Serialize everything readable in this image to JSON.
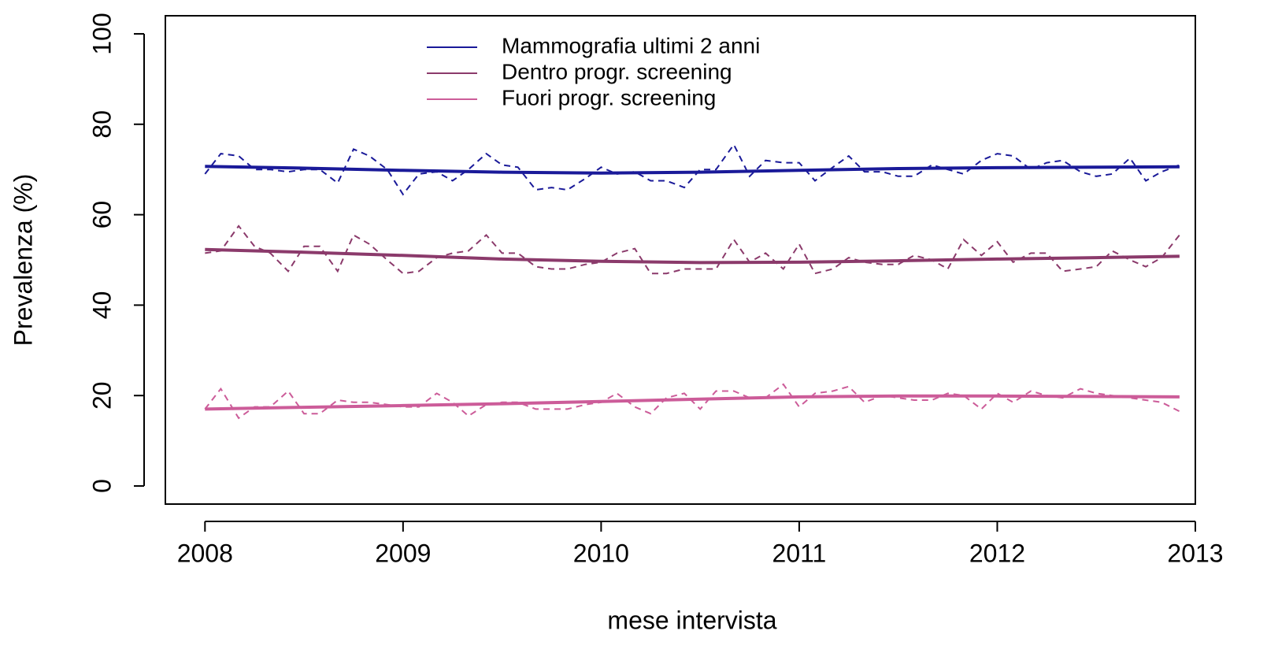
{
  "chart_data": {
    "type": "line",
    "xlabel": "mese intervista",
    "ylabel": "Prevalenza (%)",
    "xlim": [
      2007.8,
      2013
    ],
    "ylim": [
      -4,
      104
    ],
    "xticks": [
      2008,
      2009,
      2010,
      2011,
      2012,
      2013
    ],
    "yticks": [
      0,
      20,
      40,
      60,
      80,
      100
    ],
    "legend": "top",
    "x": [
      2008,
      2008.08,
      2008.17,
      2008.25,
      2008.33,
      2008.42,
      2008.5,
      2008.58,
      2008.67,
      2008.75,
      2008.83,
      2008.92,
      2009,
      2009.08,
      2009.17,
      2009.25,
      2009.33,
      2009.42,
      2009.5,
      2009.58,
      2009.67,
      2009.75,
      2009.83,
      2009.92,
      2010,
      2010.08,
      2010.17,
      2010.25,
      2010.33,
      2010.42,
      2010.5,
      2010.58,
      2010.67,
      2010.75,
      2010.83,
      2010.92,
      2011,
      2011.08,
      2011.17,
      2011.25,
      2011.33,
      2011.42,
      2011.5,
      2011.58,
      2011.67,
      2011.75,
      2011.83,
      2011.92,
      2012,
      2012.08,
      2012.17,
      2012.25,
      2012.33,
      2012.42,
      2012.5,
      2012.58,
      2012.67,
      2012.75,
      2012.83,
      2012.92
    ],
    "series": [
      {
        "name": "Mammografia ultimi 2 anni",
        "color": "#1a1a99",
        "values": [
          69,
          73.5,
          73,
          70,
          70,
          69.5,
          70,
          70,
          67,
          74.5,
          73,
          70,
          64.5,
          69,
          69.5,
          67.5,
          70,
          73.5,
          71,
          70.5,
          65.5,
          66,
          65.5,
          68,
          70.5,
          69,
          69.5,
          67.5,
          67.5,
          66,
          70,
          70,
          75.5,
          68.5,
          72,
          71.5,
          71.5,
          67.5,
          70.5,
          73,
          69.5,
          69.5,
          68.5,
          68.5,
          71,
          70,
          69,
          72,
          73.5,
          73,
          70,
          71.5,
          72,
          69.5,
          68.5,
          69,
          72.5,
          67.5,
          69.5,
          71
        ],
        "trend": {
          "x": [
            2008,
            2008.5,
            2009,
            2009.5,
            2010,
            2010.5,
            2011,
            2011.5,
            2012,
            2012.5,
            2012.92
          ],
          "values": [
            70.7,
            70.3,
            69.8,
            69.4,
            69.2,
            69.4,
            69.8,
            70.2,
            70.4,
            70.5,
            70.6
          ]
        }
      },
      {
        "name": "Dentro progr. screening",
        "color": "#8b3a6b",
        "values": [
          51.5,
          52,
          57.5,
          53,
          51.5,
          47.5,
          53,
          53,
          47.5,
          55.5,
          53.5,
          50,
          47,
          47.5,
          50.5,
          51.5,
          52,
          55.5,
          51.5,
          51.5,
          48.5,
          48,
          48,
          49,
          49.5,
          51.5,
          52.5,
          47,
          47,
          48,
          48,
          48,
          54.5,
          49.5,
          51.5,
          48,
          53.5,
          47,
          48,
          50.5,
          49.5,
          49,
          49,
          51,
          50,
          48,
          54.5,
          51,
          54,
          49.5,
          51.5,
          51.5,
          47.5,
          48,
          48.5,
          52,
          50,
          48.5,
          50.5,
          55.5
        ],
        "trend": {
          "x": [
            2008,
            2008.5,
            2009,
            2009.5,
            2010,
            2010.5,
            2011,
            2011.5,
            2012,
            2012.5,
            2012.92
          ],
          "values": [
            52.3,
            51.7,
            51,
            50.2,
            49.7,
            49.4,
            49.5,
            49.8,
            50.2,
            50.5,
            50.8
          ]
        }
      },
      {
        "name": "Fuori progr. screening",
        "color": "#cc5c99",
        "values": [
          17,
          21.5,
          15,
          17.5,
          17.5,
          21,
          16,
          16,
          19,
          18.5,
          18.5,
          18,
          17.5,
          17.5,
          20.5,
          18.5,
          15.5,
          18,
          18.5,
          18.5,
          17,
          17,
          17,
          18,
          18.5,
          20.5,
          17.5,
          16,
          19.5,
          20.5,
          17,
          21,
          21,
          19.5,
          19.5,
          22.5,
          17.5,
          20.5,
          21,
          22,
          18.5,
          20,
          19.5,
          19,
          19,
          20.5,
          20,
          17,
          20.5,
          18.5,
          21,
          20,
          19.5,
          21.5,
          20.5,
          20,
          19.5,
          19,
          18.5,
          16.5
        ],
        "trend": {
          "x": [
            2008,
            2008.5,
            2009,
            2009.5,
            2010,
            2010.5,
            2011,
            2011.5,
            2012,
            2012.5,
            2012.92
          ],
          "values": [
            17,
            17.4,
            17.8,
            18.2,
            18.7,
            19.2,
            19.7,
            19.9,
            19.9,
            19.8,
            19.7
          ]
        }
      }
    ]
  }
}
